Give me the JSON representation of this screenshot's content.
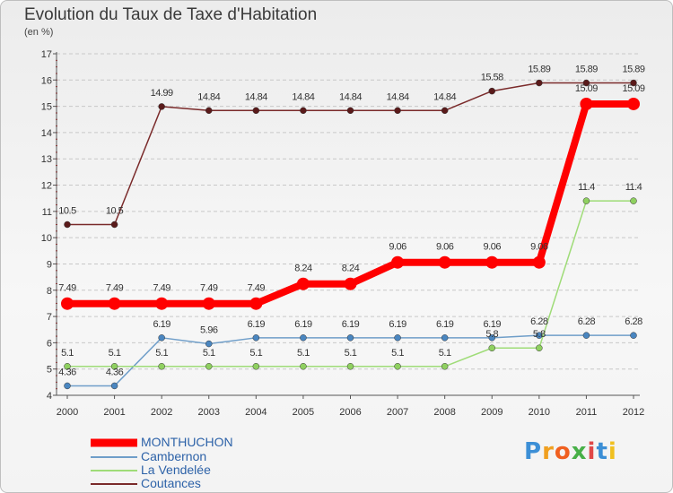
{
  "chart_data": {
    "type": "line",
    "title": "Evolution du Taux de Taxe d'Habitation",
    "subtitle": "(en %)",
    "x": [
      "2000",
      "2001",
      "2002",
      "2003",
      "2004",
      "2005",
      "2006",
      "2007",
      "2008",
      "2009",
      "2010",
      "2011",
      "2012"
    ],
    "ylim": [
      4,
      17
    ],
    "yticks": [
      "4",
      "5",
      "6",
      "7",
      "8",
      "9",
      "10",
      "11",
      "12",
      "13",
      "14",
      "15",
      "16",
      "17"
    ],
    "grid": "horizontal dashed",
    "legend_position": "bottom-left",
    "series": [
      {
        "name": "MONTHUCHON",
        "color": "#ff0000",
        "values": [
          7.49,
          7.49,
          7.49,
          7.49,
          7.49,
          8.24,
          8.24,
          9.06,
          9.06,
          9.06,
          9.06,
          15.09,
          15.09
        ],
        "labels": [
          "7.49",
          "7.49",
          "7.49",
          "7.49",
          "7.49",
          "8.24",
          "8.24",
          "9.06",
          "9.06",
          "9.06",
          "9.06",
          "15.09",
          "15.09"
        ]
      },
      {
        "name": "Cambernon",
        "color": "#6f9ec9",
        "values": [
          4.36,
          4.36,
          6.19,
          5.96,
          6.19,
          6.19,
          6.19,
          6.19,
          6.19,
          6.19,
          6.28,
          6.28,
          6.28
        ],
        "labels": [
          "4.36",
          "4.36",
          "6.19",
          "5.96",
          "6.19",
          "6.19",
          "6.19",
          "6.19",
          "6.19",
          "6.19",
          "6.28",
          "6.28",
          "6.28"
        ]
      },
      {
        "name": "La Vendelée",
        "color": "#9fdc78",
        "values": [
          5.1,
          5.1,
          5.1,
          5.1,
          5.1,
          5.1,
          5.1,
          5.1,
          5.1,
          5.8,
          5.8,
          11.4,
          11.4
        ],
        "labels": [
          "5.1",
          "5.1",
          "5.1",
          "5.1",
          "5.1",
          "5.1",
          "5.1",
          "5.1",
          "5.1",
          "5.8",
          "5.8",
          "11.4",
          "11.4"
        ]
      },
      {
        "name": "Coutances",
        "color": "#7a2a2a",
        "values": [
          10.5,
          10.5,
          14.99,
          14.84,
          14.84,
          14.84,
          14.84,
          14.84,
          14.84,
          15.58,
          15.89,
          15.89,
          15.89
        ],
        "labels": [
          "10.5",
          "10.5",
          "14.99",
          "14.84",
          "14.84",
          "14.84",
          "14.84",
          "14.84",
          "14.84",
          "15.58",
          "15.89",
          "15.89",
          "15.89"
        ]
      }
    ]
  },
  "logo": {
    "letters": [
      "P",
      "r",
      "o",
      "x",
      "i",
      "t",
      "i"
    ],
    "colors": [
      "#3c8fd6",
      "#f0a020",
      "#f06020",
      "#48b048",
      "#e04848",
      "#3c8fd6",
      "#f0c020"
    ]
  }
}
